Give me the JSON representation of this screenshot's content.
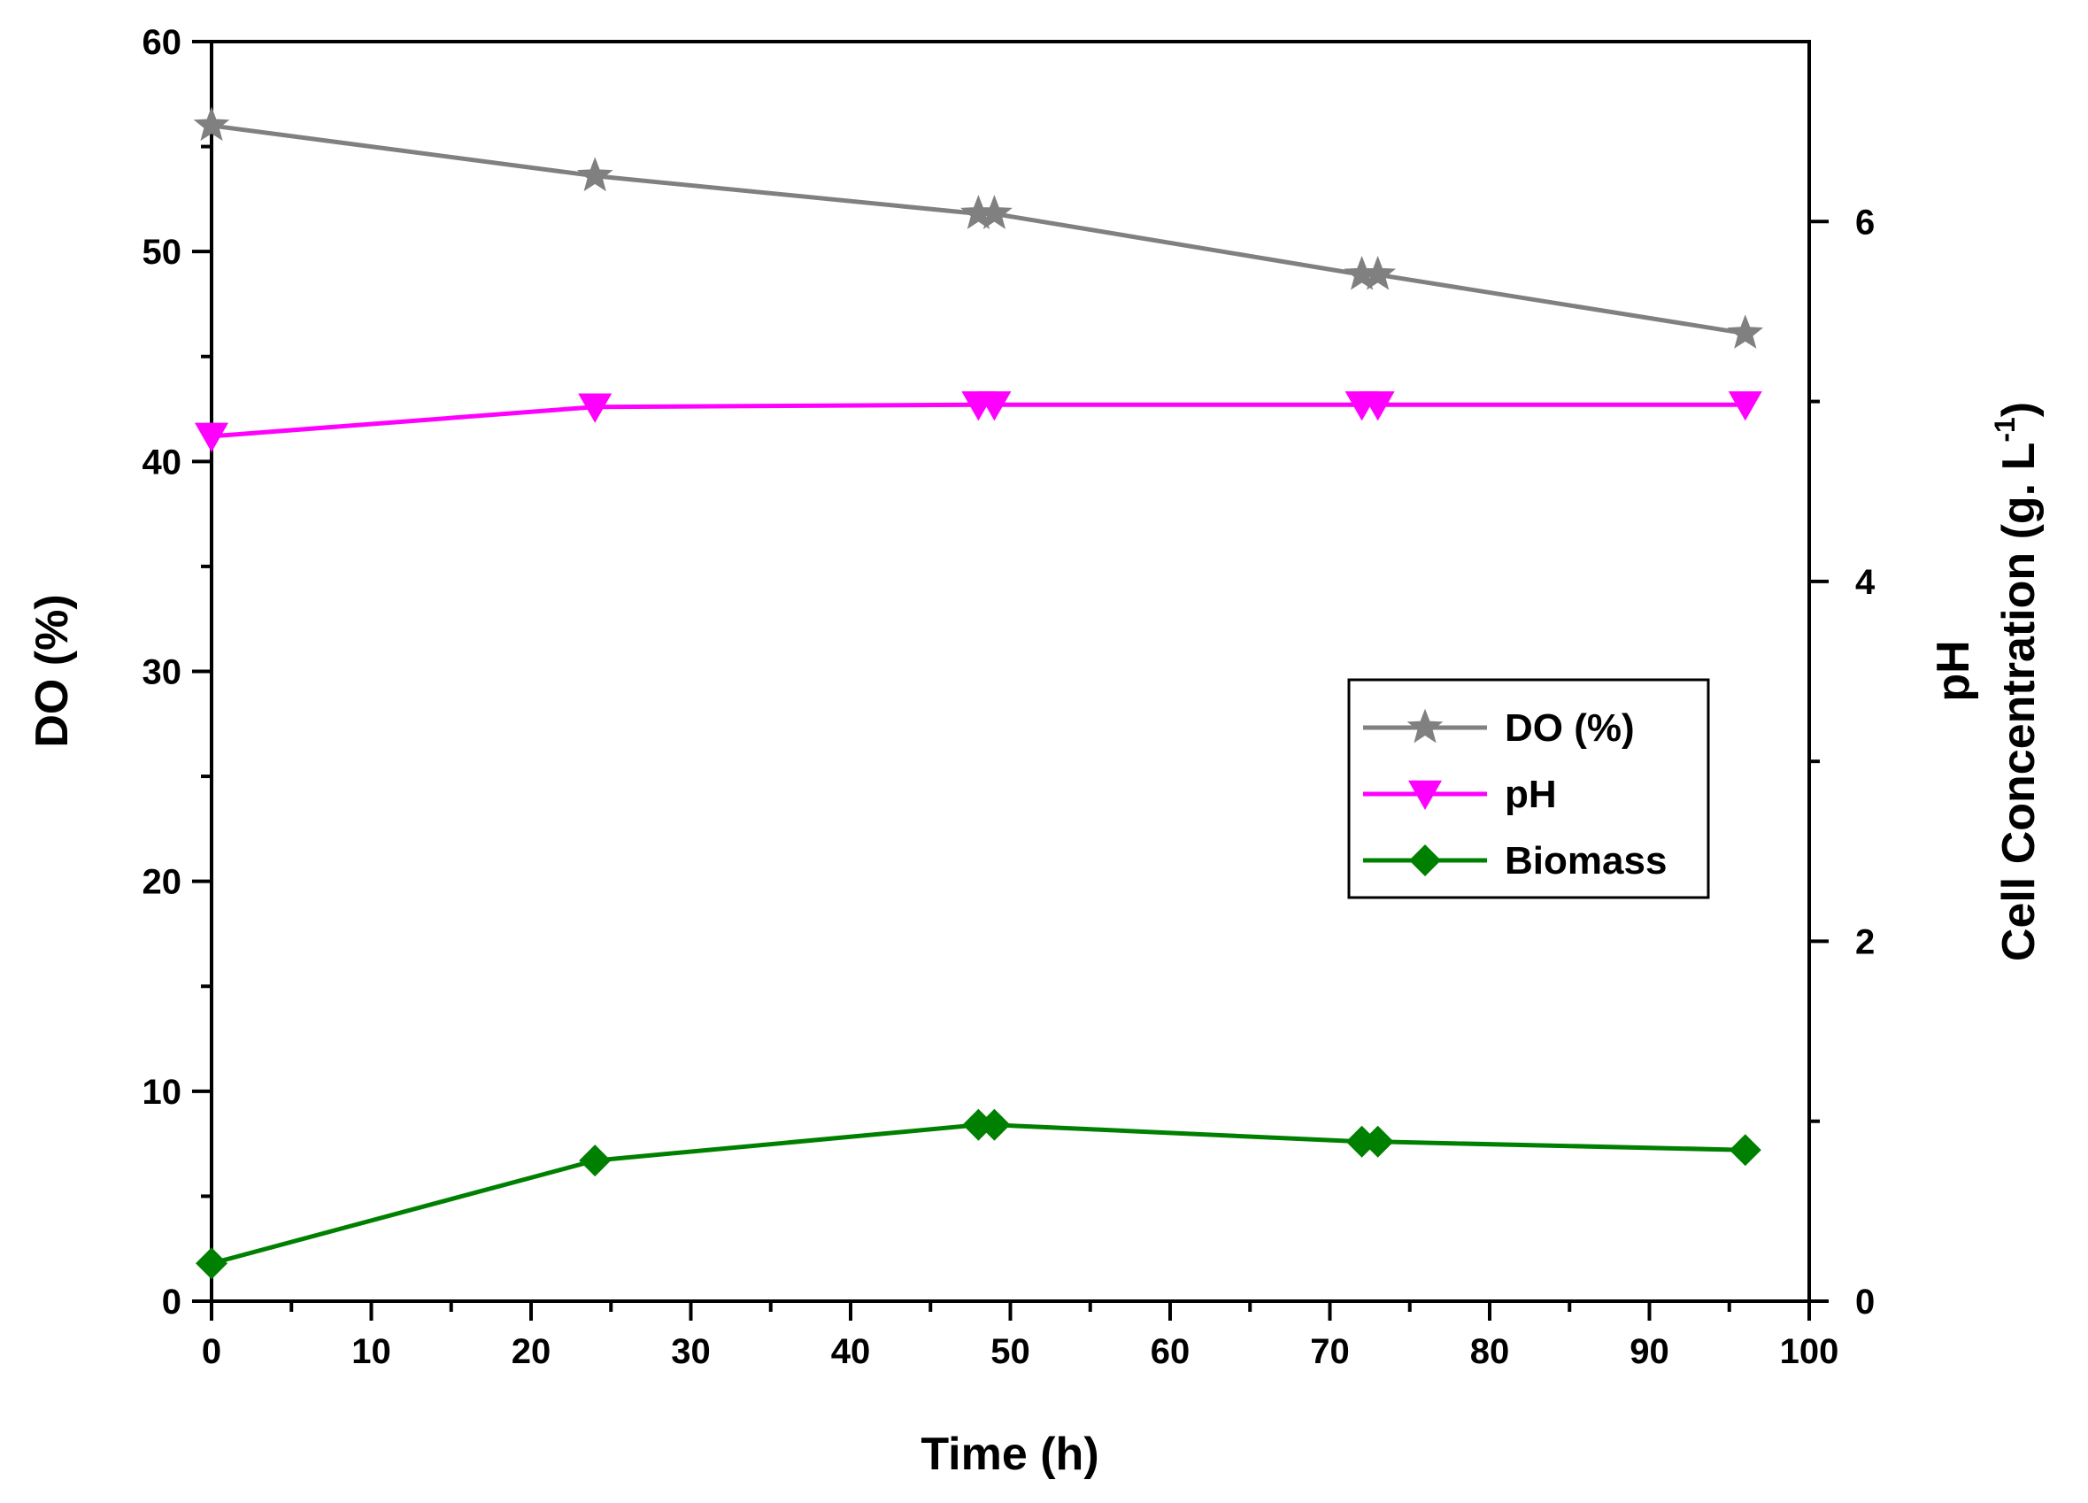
{
  "chart_data": {
    "type": "line",
    "xlabel": "Time (h)",
    "ylabel_left": "DO (%)",
    "ylabel_right": [
      "pH",
      "Cell Concentration (g. L",
      "-1",
      ")"
    ],
    "xlim": [
      0,
      100
    ],
    "ylim_left": [
      0,
      60
    ],
    "ylim_right": [
      0,
      7
    ],
    "x_ticks": [
      0,
      10,
      20,
      30,
      40,
      50,
      60,
      70,
      80,
      90,
      100
    ],
    "y_left_ticks": [
      0,
      10,
      20,
      30,
      40,
      50,
      60
    ],
    "y_right_ticks": [
      0,
      2,
      4,
      6
    ],
    "grid": false,
    "legend_position": "right-middle",
    "series": [
      {
        "name": "DO (%)",
        "axis": "left",
        "marker": "star",
        "color": "#808080",
        "points": [
          {
            "x": 0,
            "y": 56.0
          },
          {
            "x": 24,
            "y": 53.6
          },
          {
            "x": 48,
            "y": 51.8
          },
          {
            "x": 49,
            "y": 51.8
          },
          {
            "x": 72,
            "y": 48.9
          },
          {
            "x": 73,
            "y": 48.9
          },
          {
            "x": 96,
            "y": 46.1
          }
        ]
      },
      {
        "name": "pH",
        "axis": "left",
        "marker": "triangle-down",
        "color": "#ff00ff",
        "points": [
          {
            "x": 0,
            "y": 41.2
          },
          {
            "x": 24,
            "y": 42.6
          },
          {
            "x": 48,
            "y": 42.7
          },
          {
            "x": 49,
            "y": 42.7
          },
          {
            "x": 72,
            "y": 42.7
          },
          {
            "x": 73,
            "y": 42.7
          },
          {
            "x": 96,
            "y": 42.7
          }
        ]
      },
      {
        "name": "Biomass",
        "axis": "left",
        "marker": "diamond",
        "color": "#008000",
        "points": [
          {
            "x": 0,
            "y": 1.8
          },
          {
            "x": 24,
            "y": 6.7
          },
          {
            "x": 48,
            "y": 8.4
          },
          {
            "x": 49,
            "y": 8.4
          },
          {
            "x": 72,
            "y": 7.6
          },
          {
            "x": 73,
            "y": 7.6
          },
          {
            "x": 96,
            "y": 7.2
          }
        ]
      }
    ]
  }
}
